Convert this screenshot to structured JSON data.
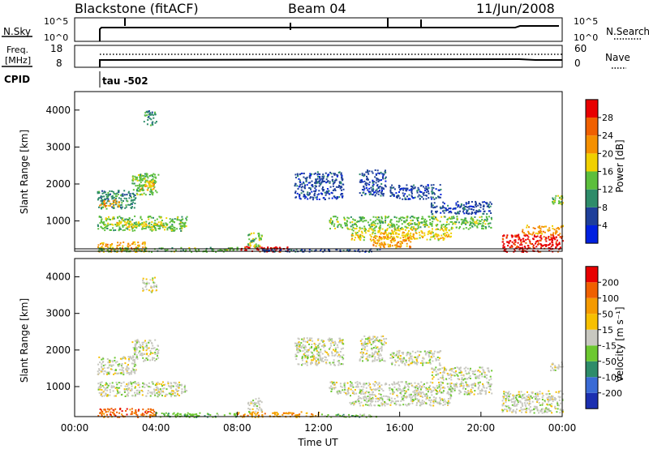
{
  "header": {
    "station": "Blackstone (fitACF)",
    "beam": "Beam 04",
    "date": "11/Jun/2008"
  },
  "status_panel": {
    "nsky_label": "N.Sky",
    "nsearch_label": "N.Search",
    "nsky_ticks": [
      "10^5",
      "10^0"
    ],
    "nsearch_ticks": [
      "10^5",
      "10^0"
    ],
    "freq_label_1": "Freq.",
    "freq_label_2": "[MHz]",
    "freq_ticks": [
      "18",
      "8"
    ],
    "nave_label": "Nave",
    "nave_ticks": [
      "60",
      "0"
    ],
    "cpid_label": "CPID",
    "cpid_value": "tau -502"
  },
  "colors": {
    "power": [
      "#0020e0",
      "#1e3f9a",
      "#2e8c6a",
      "#5cbf3c",
      "#f0d000",
      "#f59000",
      "#f06000",
      "#e80000"
    ],
    "velocity": [
      "#1b2fb0",
      "#3a6bd6",
      "#2e8c6a",
      "#6cc830",
      "#c8c8c0",
      "#f7c000",
      "#f59a00",
      "#f06000",
      "#e80000"
    ]
  },
  "chart_data": [
    {
      "type": "heatmap",
      "name": "power",
      "ylabel": "Slant Range [km]",
      "ylim": [
        180,
        4500
      ],
      "yticks": [
        "1000",
        "2000",
        "3000",
        "4000"
      ],
      "xlim": [
        0,
        24
      ],
      "colorbar_label": "Power [dB]",
      "colorbar_ticks": [
        "4",
        "8",
        "12",
        "16",
        "20",
        "24",
        "28"
      ],
      "regions": [
        {
          "t0": 1.1,
          "t1": 3.0,
          "r0": 1350,
          "r1": 1850,
          "c": 2
        },
        {
          "t0": 1.2,
          "t1": 2.2,
          "r0": 1400,
          "r1": 1600,
          "c": 5
        },
        {
          "t0": 2.8,
          "t1": 4.1,
          "r0": 1700,
          "r1": 2300,
          "c": 3
        },
        {
          "t0": 3.2,
          "t1": 3.9,
          "r0": 1850,
          "r1": 2100,
          "c": 4
        },
        {
          "t0": 3.3,
          "t1": 4.0,
          "r0": 3600,
          "r1": 4000,
          "c": 2
        },
        {
          "t0": 1.1,
          "t1": 5.5,
          "r0": 750,
          "r1": 1150,
          "c": 3
        },
        {
          "t0": 2.0,
          "t1": 4.5,
          "r0": 850,
          "r1": 1000,
          "c": 4
        },
        {
          "t0": 1.1,
          "t1": 3.5,
          "r0": 180,
          "r1": 450,
          "c": 5
        },
        {
          "t0": 1.1,
          "t1": 8.0,
          "r0": 180,
          "r1": 300,
          "c": 3
        },
        {
          "t0": 8.0,
          "t1": 10.5,
          "r0": 180,
          "r1": 330,
          "c": 7
        },
        {
          "t0": 8.5,
          "t1": 9.2,
          "r0": 300,
          "r1": 700,
          "c": 3
        },
        {
          "t0": 9.0,
          "t1": 15.0,
          "r0": 180,
          "r1": 260,
          "c": 1
        },
        {
          "t0": 10.8,
          "t1": 13.2,
          "r0": 1600,
          "r1": 2350,
          "c": 1
        },
        {
          "t0": 12.5,
          "t1": 20.5,
          "r0": 800,
          "r1": 1150,
          "c": 3
        },
        {
          "t0": 13.5,
          "t1": 18.5,
          "r0": 500,
          "r1": 820,
          "c": 4
        },
        {
          "t0": 14.5,
          "t1": 16.5,
          "r0": 300,
          "r1": 600,
          "c": 5
        },
        {
          "t0": 14.0,
          "t1": 15.3,
          "r0": 1700,
          "r1": 2400,
          "c": 1
        },
        {
          "t0": 15.5,
          "t1": 18.0,
          "r0": 1600,
          "r1": 2000,
          "c": 1
        },
        {
          "t0": 17.5,
          "t1": 20.5,
          "r0": 1200,
          "r1": 1550,
          "c": 1
        },
        {
          "t0": 21.0,
          "t1": 24.0,
          "r0": 180,
          "r1": 650,
          "c": 7
        },
        {
          "t0": 22.0,
          "t1": 24.0,
          "r0": 650,
          "r1": 900,
          "c": 5
        },
        {
          "t0": 23.4,
          "t1": 24.0,
          "r0": 1450,
          "r1": 1700,
          "c": 3
        }
      ]
    },
    {
      "type": "heatmap",
      "name": "velocity",
      "ylabel": "Slant Range [km]",
      "ylim": [
        180,
        4500
      ],
      "yticks": [
        "1000",
        "2000",
        "3000",
        "4000"
      ],
      "xlim": [
        0,
        24
      ],
      "xticks": [
        "00:00",
        "04:00",
        "08:00",
        "12:00",
        "16:00",
        "20:00",
        "00:00"
      ],
      "xlabel": "Time UT",
      "colorbar_label": "Velocity [m s⁻¹]",
      "colorbar_ticks": [
        "200",
        "100",
        "50",
        "15",
        "-15",
        "-50",
        "-100",
        "-200"
      ],
      "regions": [
        {
          "t0": 1.1,
          "t1": 3.0,
          "r0": 1350,
          "r1": 1850,
          "c": 4
        },
        {
          "t0": 2.8,
          "t1": 4.1,
          "r0": 1700,
          "r1": 2300,
          "c": 4
        },
        {
          "t0": 3.3,
          "t1": 4.0,
          "r0": 3600,
          "r1": 4000,
          "c": 4
        },
        {
          "t0": 1.1,
          "t1": 5.5,
          "r0": 750,
          "r1": 1150,
          "c": 4
        },
        {
          "t0": 1.1,
          "t1": 4.0,
          "r0": 180,
          "r1": 420,
          "c": 7
        },
        {
          "t0": 4.0,
          "t1": 8.0,
          "r0": 180,
          "r1": 300,
          "c": 3
        },
        {
          "t0": 8.0,
          "t1": 12.0,
          "r0": 180,
          "r1": 330,
          "c": 6
        },
        {
          "t0": 8.5,
          "t1": 9.2,
          "r0": 300,
          "r1": 700,
          "c": 4
        },
        {
          "t0": 12.0,
          "t1": 15.0,
          "r0": 180,
          "r1": 260,
          "c": 3
        },
        {
          "t0": 10.8,
          "t1": 13.2,
          "r0": 1600,
          "r1": 2350,
          "c": 4
        },
        {
          "t0": 12.5,
          "t1": 20.5,
          "r0": 800,
          "r1": 1150,
          "c": 4
        },
        {
          "t0": 13.5,
          "t1": 18.5,
          "r0": 500,
          "r1": 820,
          "c": 4
        },
        {
          "t0": 14.0,
          "t1": 15.3,
          "r0": 1700,
          "r1": 2400,
          "c": 4
        },
        {
          "t0": 15.5,
          "t1": 18.0,
          "r0": 1600,
          "r1": 2000,
          "c": 4
        },
        {
          "t0": 17.5,
          "t1": 20.5,
          "r0": 1200,
          "r1": 1550,
          "c": 4
        },
        {
          "t0": 21.0,
          "t1": 24.0,
          "r0": 300,
          "r1": 900,
          "c": 4
        },
        {
          "t0": 23.4,
          "t1": 24.0,
          "r0": 1450,
          "r1": 1700,
          "c": 4
        }
      ]
    }
  ]
}
